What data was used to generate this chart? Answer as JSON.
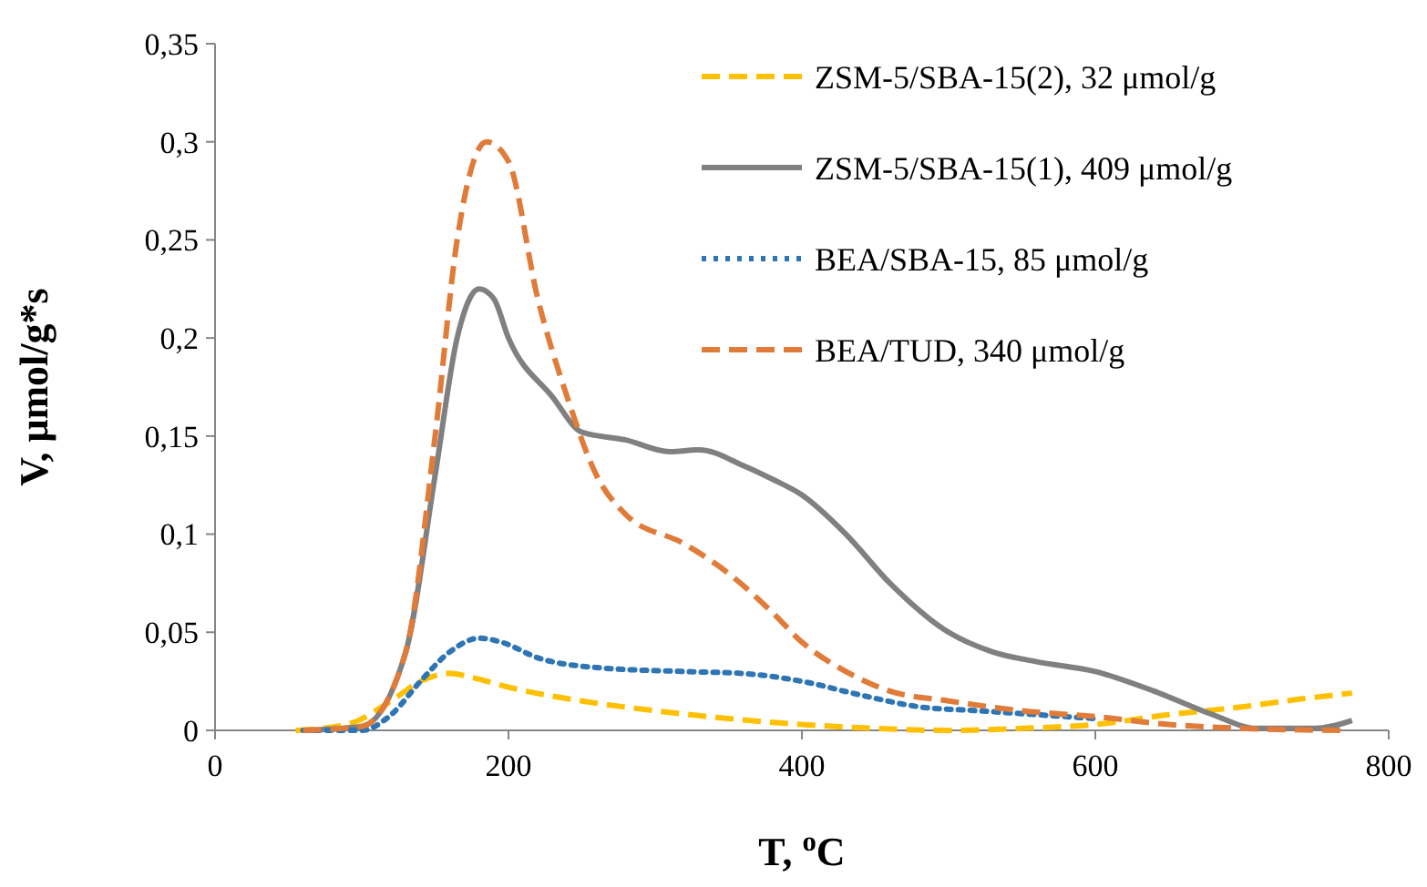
{
  "chart_data": {
    "type": "line",
    "xlabel": "T, $^{o}$C",
    "ylabel": "V, μmol/g*s",
    "xlim": [
      0,
      800
    ],
    "xticks": [
      0,
      200,
      400,
      600,
      800
    ],
    "ylim": [
      0,
      0.35
    ],
    "yticks": [
      0,
      {
        "value": 0.05,
        "label": "0,05"
      },
      {
        "value": 0.1,
        "label": "0,1"
      },
      {
        "value": 0.15,
        "label": "0,15"
      },
      {
        "value": 0.2,
        "label": "0,2"
      },
      {
        "value": 0.25,
        "label": "0,25"
      },
      {
        "value": 0.3,
        "label": "0,3"
      },
      {
        "value": 0.35,
        "label": "0,35"
      }
    ],
    "grid": false,
    "legend": "top right",
    "marker": "none",
    "series": [
      {
        "name": "ZSM-5/SBA-15(2), 32 μmol/g",
        "color": "#ffc000",
        "line_style": "dashed",
        "x": [
          55,
          90,
          120,
          140,
          160,
          175,
          200,
          250,
          300,
          350,
          400,
          450,
          500,
          550,
          600,
          650,
          700,
          740,
          775
        ],
        "values": [
          0,
          0.003,
          0.015,
          0.025,
          0.029,
          0.027,
          0.022,
          0.015,
          0.01,
          0.006,
          0.003,
          0.001,
          0,
          0.001,
          0.003,
          0.008,
          0.012,
          0.016,
          0.019
        ]
      },
      {
        "name": "ZSM-5/SBA-15(1), 409 μmol/g",
        "color": "#808080",
        "line_style": "solid",
        "x": [
          60,
          100,
          130,
          150,
          165,
          180,
          190,
          200,
          230,
          250,
          280,
          310,
          330,
          360,
          380,
          400,
          430,
          460,
          500,
          530,
          560,
          600,
          640,
          680,
          710,
          750,
          775
        ],
        "values": [
          0,
          0.002,
          0.04,
          0.13,
          0.2,
          0.225,
          0.22,
          0.2,
          0.17,
          0.152,
          0.148,
          0.142,
          0.143,
          0.135,
          0.128,
          0.12,
          0.1,
          0.075,
          0.05,
          0.04,
          0.035,
          0.03,
          0.02,
          0.008,
          0.001,
          0.001,
          0.005
        ]
      },
      {
        "name": "BEA/SBA-15, 85 μmol/g",
        "color": "#2e75b6",
        "line_style": "dotted",
        "x": [
          60,
          100,
          120,
          140,
          160,
          180,
          195,
          220,
          260,
          320,
          360,
          400,
          440,
          480,
          520,
          560,
          600
        ],
        "values": [
          0,
          0,
          0.008,
          0.025,
          0.04,
          0.047,
          0.045,
          0.037,
          0.032,
          0.03,
          0.029,
          0.025,
          0.018,
          0.012,
          0.01,
          0.008,
          0.006
        ]
      },
      {
        "name": "BEA/TUD, 340 μmol/g",
        "color": "#e07b39",
        "line_style": "dashed",
        "x": [
          60,
          100,
          130,
          150,
          165,
          185,
          200,
          220,
          240,
          260,
          280,
          320,
          350,
          380,
          400,
          430,
          460,
          500,
          550,
          600,
          650,
          700,
          770
        ],
        "values": [
          0,
          0.002,
          0.04,
          0.15,
          0.25,
          0.3,
          0.29,
          0.22,
          0.17,
          0.13,
          0.11,
          0.095,
          0.08,
          0.06,
          0.045,
          0.03,
          0.02,
          0.015,
          0.01,
          0.007,
          0.003,
          0.001,
          0
        ]
      }
    ]
  }
}
